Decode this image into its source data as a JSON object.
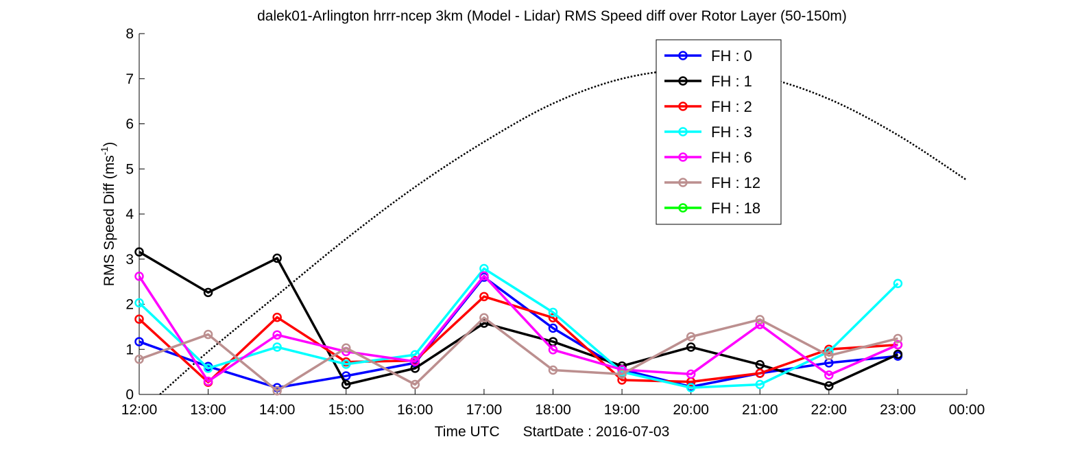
{
  "chart_data": {
    "type": "line",
    "title": "dalek01-Arlington hrrr-ncep 3km (Model - Lidar) RMS Speed diff over Rotor Layer (50-150m)",
    "xlabel_prefix": "Time UTC",
    "xlabel_suffix": "StartDate : 2016-07-03",
    "ylabel_main": "RMS Speed Diff (ms",
    "ylabel_sup": "-1",
    "ylabel_close": ")",
    "x_ticks": [
      "12:00",
      "13:00",
      "14:00",
      "15:00",
      "16:00",
      "17:00",
      "18:00",
      "19:00",
      "20:00",
      "21:00",
      "22:00",
      "23:00",
      "00:00"
    ],
    "x_hours": [
      0,
      1,
      2,
      3,
      4,
      5,
      6,
      7,
      8,
      9,
      10,
      11,
      12
    ],
    "y_ticks": [
      0,
      1,
      2,
      3,
      4,
      5,
      6,
      7,
      8
    ],
    "ylim": [
      0,
      8
    ],
    "legend_position": "top-right",
    "series": [
      {
        "name": "FH : 0",
        "color": "#0000ff",
        "values": [
          1.17,
          0.62,
          0.15,
          0.41,
          0.7,
          2.6,
          1.47,
          0.55,
          0.17,
          0.47,
          0.7,
          0.85
        ]
      },
      {
        "name": "FH : 1",
        "color": "#000000",
        "values": [
          3.16,
          2.26,
          3.02,
          0.22,
          0.58,
          1.58,
          1.17,
          0.63,
          1.05,
          0.66,
          0.19,
          0.89
        ]
      },
      {
        "name": "FH : 2",
        "color": "#ff0000",
        "values": [
          1.67,
          0.27,
          1.71,
          0.72,
          0.75,
          2.17,
          1.7,
          0.32,
          0.28,
          0.47,
          1.0,
          1.1
        ]
      },
      {
        "name": "FH : 3",
        "color": "#00ffff",
        "values": [
          2.03,
          0.58,
          1.05,
          0.67,
          0.88,
          2.79,
          1.82,
          0.5,
          0.15,
          0.22,
          0.95,
          2.46
        ]
      },
      {
        "name": "FH : 6",
        "color": "#ff00ff",
        "values": [
          2.62,
          0.29,
          1.32,
          0.95,
          0.73,
          2.63,
          0.99,
          0.55,
          0.45,
          1.55,
          0.43,
          1.1
        ]
      },
      {
        "name": "FH : 12",
        "color": "#bc8f8f",
        "values": [
          0.78,
          1.33,
          0.08,
          1.03,
          0.22,
          1.7,
          0.54,
          0.45,
          1.28,
          1.66,
          0.86,
          1.24
        ]
      },
      {
        "name": "FH : 18",
        "color": "#00ff00",
        "values": []
      }
    ],
    "reference_curve": {
      "style": "dotted",
      "color": "#000000",
      "x": [
        0.3,
        1,
        2,
        3,
        4,
        5,
        6,
        7,
        8,
        9,
        10,
        11,
        12
      ],
      "y": [
        0.0,
        0.95,
        2.2,
        3.45,
        4.6,
        5.6,
        6.45,
        7.0,
        7.2,
        7.05,
        6.55,
        5.75,
        4.75
      ]
    }
  }
}
